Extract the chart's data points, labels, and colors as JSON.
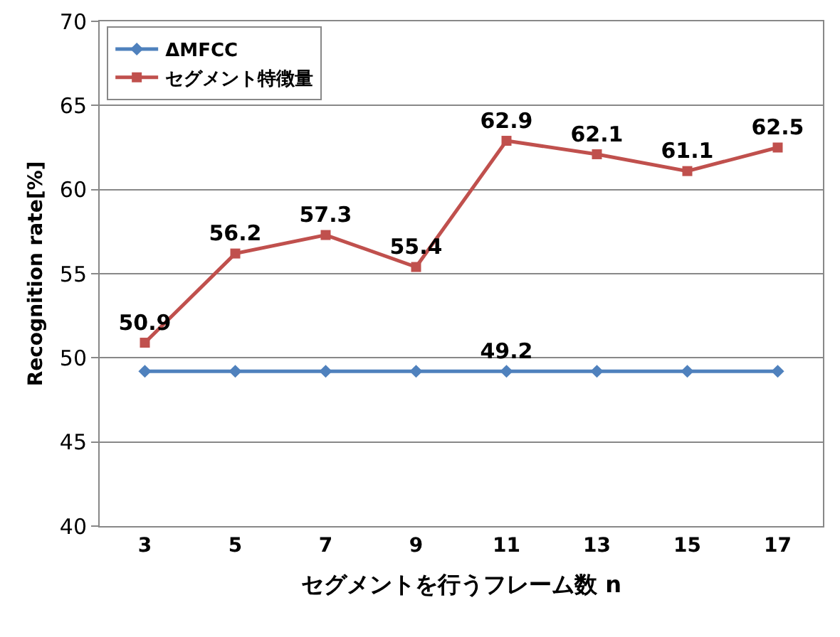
{
  "chart_data": {
    "type": "line",
    "xlabel": "セグメントを行うフレーム数 n",
    "ylabel": "Recognition rate[%]",
    "categories": [
      "3",
      "5",
      "7",
      "9",
      "11",
      "13",
      "15",
      "17"
    ],
    "series": [
      {
        "name": "ΔMFCC",
        "color": "#4f81bd",
        "marker": "diamond",
        "values": [
          49.2,
          49.2,
          49.2,
          49.2,
          49.2,
          49.2,
          49.2,
          49.2
        ],
        "value_labels": [
          null,
          null,
          null,
          null,
          "49.2",
          null,
          null,
          null
        ]
      },
      {
        "name": "セグメント特徴量",
        "color": "#c0504d",
        "marker": "square",
        "values": [
          50.9,
          56.2,
          57.3,
          55.4,
          62.9,
          62.1,
          61.1,
          62.5
        ],
        "value_labels": [
          "50.9",
          "56.2",
          "57.3",
          "55.4",
          "62.9",
          "62.1",
          "61.1",
          "62.5"
        ]
      }
    ],
    "ylim": [
      40,
      70
    ],
    "yticks": [
      40,
      45,
      50,
      55,
      60,
      65,
      70
    ],
    "grid": "y",
    "legend": "top left"
  }
}
